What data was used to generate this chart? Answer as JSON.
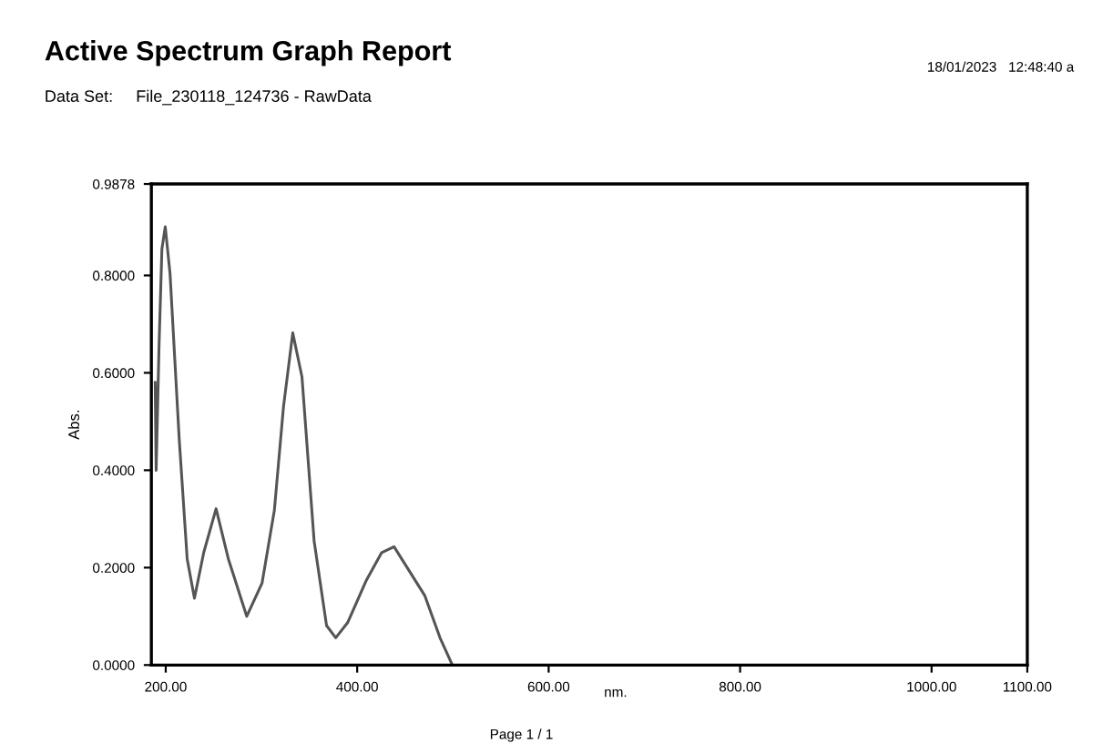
{
  "chart_data": {
    "type": "line",
    "title": "Active Spectrum Graph Report",
    "subtitle": "Data Set:     File_230118_124736 - RawData",
    "annotations": [
      "18/01/2023   12:48:40 a",
      "Page 1 / 1"
    ],
    "xlabel": "nm.",
    "ylabel": "Abs.",
    "x": [
      189,
      190,
      193,
      196,
      199.5,
      204.5,
      214,
      222.4,
      230,
      239.7,
      252.6,
      265.4,
      284.6,
      300.6,
      313.5,
      323,
      332.7,
      342.3,
      355,
      368,
      377.6,
      390,
      409.6,
      425.6,
      438.5,
      454.5,
      470.5,
      486.5,
      499.4
    ],
    "series": [
      {
        "color": "#555555",
        "values": [
          0.58,
          0.4,
          0.654,
          0.854,
          0.9,
          0.804,
          0.467,
          0.218,
          0.137,
          0.231,
          0.321,
          0.218,
          0.1,
          0.168,
          0.318,
          0.53,
          0.682,
          0.592,
          0.255,
          0.081,
          0.056,
          0.087,
          0.174,
          0.231,
          0.243,
          0.193,
          0.143,
          0.056,
          0.0
        ]
      }
    ],
    "xlim": [
      185,
      1100
    ],
    "xticks": [
      {
        "value": 200,
        "label": "200.00"
      },
      {
        "value": 400,
        "label": "400.00"
      },
      {
        "value": 600,
        "label": "600.00"
      },
      {
        "value": 800,
        "label": "800.00"
      },
      {
        "value": 1000,
        "label": "1000.00"
      },
      {
        "value": 1100,
        "label": "1100.00"
      }
    ],
    "ylim": [
      0,
      0.9878
    ],
    "yticks": [
      {
        "value": 0,
        "label": "0.0000"
      },
      {
        "value": 0.2,
        "label": "0.2000"
      },
      {
        "value": 0.4,
        "label": "0.4000"
      },
      {
        "value": 0.6,
        "label": "0.6000"
      },
      {
        "value": 0.8,
        "label": "0.8000"
      },
      {
        "value": 0.9878,
        "label": "0.9878"
      }
    ],
    "grid": false,
    "legend": false,
    "marker": "none",
    "line_style": "solid"
  }
}
